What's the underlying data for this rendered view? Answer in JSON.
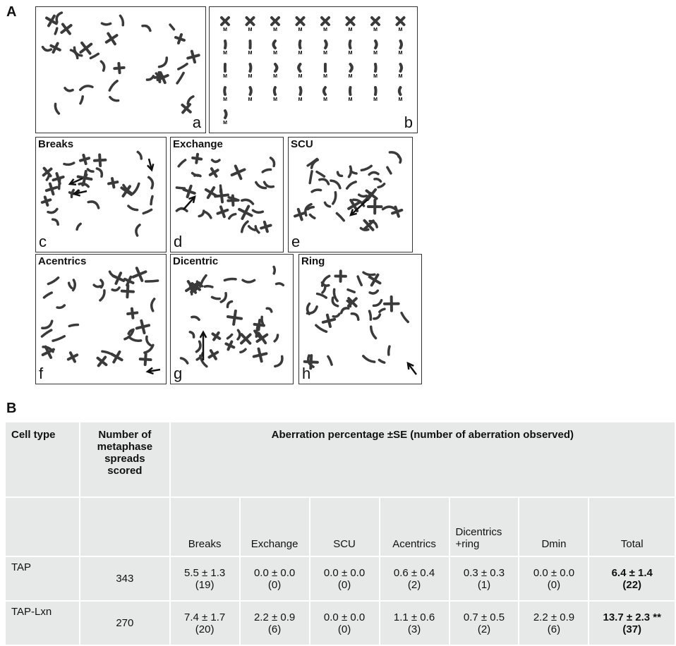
{
  "figure": {
    "panel_a_letter": "A",
    "panel_b_letter": "B",
    "images": [
      {
        "id": "a",
        "label": "a",
        "title": ""
      },
      {
        "id": "b",
        "label": "b",
        "title": "",
        "karyotype_symbol": "M"
      },
      {
        "id": "c",
        "label": "c",
        "title": "Breaks"
      },
      {
        "id": "d",
        "label": "d",
        "title": "Exchange"
      },
      {
        "id": "e",
        "label": "e",
        "title": "SCU"
      },
      {
        "id": "f",
        "label": "f",
        "title": "Acentrics"
      },
      {
        "id": "g",
        "label": "g",
        "title": "Dicentric"
      },
      {
        "id": "h",
        "label": "h",
        "title": "Ring"
      }
    ]
  },
  "table": {
    "header": {
      "cell_type": "Cell type",
      "spreads": "Number of metaphase spreads scored",
      "aberration": "Aberration percentage ±SE (number of aberration observed)"
    },
    "columns": [
      "Breaks",
      "Exchange",
      "SCU",
      "Acentrics",
      "Dicentrics +ring",
      "Dmin",
      "Total"
    ],
    "rows": [
      {
        "name": "TAP",
        "spreads": "343",
        "values": [
          {
            "pct": "5.5 ± 1.3",
            "n": "(19)"
          },
          {
            "pct": "0.0 ± 0.0",
            "n": "(0)"
          },
          {
            "pct": "0.0 ± 0.0",
            "n": "(0)"
          },
          {
            "pct": "0.6 ± 0.4",
            "n": "(2)"
          },
          {
            "pct": "0.3 ± 0.3",
            "n": "(1)"
          },
          {
            "pct": "0.0 ± 0.0",
            "n": "(0)"
          }
        ],
        "total": {
          "pct": "6.4 ± 1.4",
          "n": "(22)"
        }
      },
      {
        "name": "TAP-Lxn",
        "spreads": "270",
        "values": [
          {
            "pct": "7.4 ± 1.7",
            "n": "(20)"
          },
          {
            "pct": "2.2 ± 0.9",
            "n": "(6)"
          },
          {
            "pct": "0.0 ± 0.0",
            "n": "(0)"
          },
          {
            "pct": "1.1 ± 0.6",
            "n": "(3)"
          },
          {
            "pct": "0.7 ± 0.5",
            "n": "(2)"
          },
          {
            "pct": "2.2 ± 0.9",
            "n": "(6)"
          }
        ],
        "total": {
          "pct": "13.7 ± 2.3 **",
          "n": "(37)"
        }
      }
    ]
  }
}
